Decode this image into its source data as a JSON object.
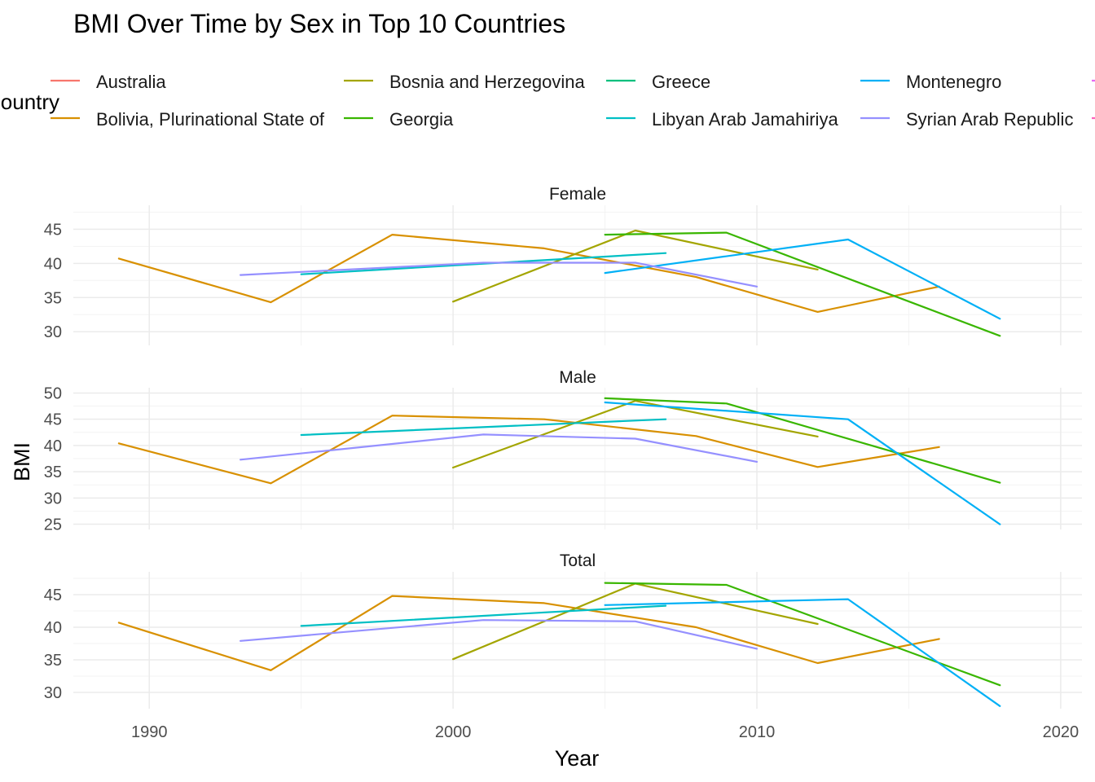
{
  "chart_data": {
    "type": "line",
    "title": "BMI Over Time by Sex in Top 10 Countries",
    "xlabel": "Year",
    "ylabel": "BMI",
    "legend_title": "Country",
    "legend_position": "top",
    "grid": true,
    "xlim": [
      1987.5,
      2020.7
    ],
    "x_ticks": [
      1990,
      2000,
      2010,
      2020
    ],
    "series": [
      {
        "name": "Australia",
        "color": "#F8766D"
      },
      {
        "name": "Bolivia, Plurinational State of",
        "color": "#D89000"
      },
      {
        "name": "Bosnia and Herzegovina",
        "color": "#A3A500"
      },
      {
        "name": "Georgia",
        "color": "#39B600"
      },
      {
        "name": "Greece",
        "color": "#00BF7D"
      },
      {
        "name": "Libyan Arab Jamahiriya",
        "color": "#00BFC4"
      },
      {
        "name": "Montenegro",
        "color": "#00B0F6"
      },
      {
        "name": "Syrian Arab Republic",
        "color": "#9590FF"
      },
      {
        "name": "",
        "color": "#E76BF3"
      },
      {
        "name": "",
        "color": "#FF62BC"
      }
    ],
    "facets": [
      {
        "label": "Female",
        "ylim": [
          28,
          48.5
        ],
        "y_ticks": [
          30,
          35,
          40,
          45
        ],
        "lines": [
          {
            "series": "Bolivia, Plurinational State of",
            "x": [
              1989,
              1994,
              1998,
              2003,
              2008,
              2012,
              2016
            ],
            "y": [
              40.7,
              34.3,
              44.2,
              42.2,
              38,
              32.9,
              36.6
            ]
          },
          {
            "series": "Bosnia and Herzegovina",
            "x": [
              2000,
              2006,
              2012
            ],
            "y": [
              34.4,
              44.8,
              39.1
            ]
          },
          {
            "series": "Georgia",
            "x": [
              2005,
              2009,
              2018
            ],
            "y": [
              44.2,
              44.5,
              29.4
            ]
          },
          {
            "series": "Libyan Arab Jamahiriya",
            "x": [
              1995,
              2007
            ],
            "y": [
              38.4,
              41.5
            ]
          },
          {
            "series": "Montenegro",
            "x": [
              2005,
              2013,
              2018
            ],
            "y": [
              38.6,
              43.5,
              31.9
            ]
          },
          {
            "series": "Syrian Arab Republic",
            "x": [
              1993,
              2001,
              2006,
              2010
            ],
            "y": [
              38.3,
              40.1,
              40.1,
              36.6
            ]
          }
        ]
      },
      {
        "label": "Male",
        "ylim": [
          24,
          51
        ],
        "y_ticks": [
          25,
          30,
          35,
          40,
          45,
          50
        ],
        "lines": [
          {
            "series": "Bolivia, Plurinational State of",
            "x": [
              1989,
              1994,
              1998,
              2003,
              2008,
              2012,
              2016
            ],
            "y": [
              40.4,
              32.8,
              45.7,
              45,
              41.8,
              35.9,
              39.7
            ]
          },
          {
            "series": "Bosnia and Herzegovina",
            "x": [
              2000,
              2006,
              2012
            ],
            "y": [
              35.8,
              48.5,
              41.7
            ]
          },
          {
            "series": "Georgia",
            "x": [
              2005,
              2009,
              2018
            ],
            "y": [
              49,
              48,
              32.9
            ]
          },
          {
            "series": "Libyan Arab Jamahiriya",
            "x": [
              1995,
              2007
            ],
            "y": [
              42,
              45
            ]
          },
          {
            "series": "Montenegro",
            "x": [
              2005,
              2013,
              2018
            ],
            "y": [
              48.2,
              45,
              25
            ]
          },
          {
            "series": "Syrian Arab Republic",
            "x": [
              1993,
              2001,
              2006,
              2010
            ],
            "y": [
              37.3,
              42.1,
              41.3,
              36.9
            ]
          }
        ]
      },
      {
        "label": "Total",
        "ylim": [
          27.5,
          48.5
        ],
        "y_ticks": [
          30,
          35,
          40,
          45
        ],
        "lines": [
          {
            "series": "Bolivia, Plurinational State of",
            "x": [
              1989,
              1994,
              1998,
              2003,
              2008,
              2012,
              2016
            ],
            "y": [
              40.7,
              33.4,
              44.8,
              43.7,
              40,
              34.5,
              38.2
            ]
          },
          {
            "series": "Bosnia and Herzegovina",
            "x": [
              2000,
              2006,
              2012
            ],
            "y": [
              35.1,
              46.7,
              40.5
            ]
          },
          {
            "series": "Georgia",
            "x": [
              2005,
              2009,
              2018
            ],
            "y": [
              46.8,
              46.5,
              31.1
            ]
          },
          {
            "series": "Libyan Arab Jamahiriya",
            "x": [
              1995,
              2007
            ],
            "y": [
              40.2,
              43.3
            ]
          },
          {
            "series": "Montenegro",
            "x": [
              2005,
              2013,
              2018
            ],
            "y": [
              43.4,
              44.3,
              27.9
            ]
          },
          {
            "series": "Syrian Arab Republic",
            "x": [
              1993,
              2001,
              2006,
              2010
            ],
            "y": [
              37.9,
              41.1,
              40.9,
              36.7
            ]
          }
        ]
      }
    ]
  }
}
